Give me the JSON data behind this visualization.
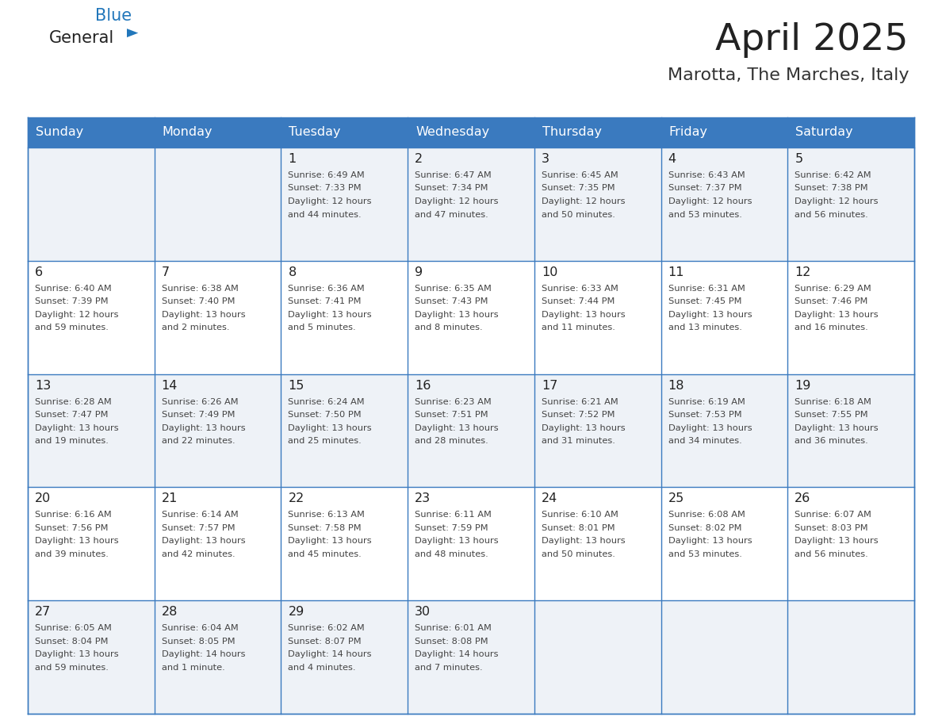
{
  "title": "April 2025",
  "subtitle": "Marotta, The Marches, Italy",
  "days_of_week": [
    "Sunday",
    "Monday",
    "Tuesday",
    "Wednesday",
    "Thursday",
    "Friday",
    "Saturday"
  ],
  "header_bg": "#3a7abf",
  "header_text": "#ffffff",
  "cell_bg_light": "#eef2f7",
  "cell_bg_white": "#ffffff",
  "border_color": "#3a7abf",
  "text_color": "#444444",
  "day_num_color": "#222222",
  "logo_black": "#222222",
  "logo_blue": "#2277bb",
  "calendar_data": [
    [
      {
        "day": null,
        "sunrise": null,
        "sunset": null,
        "daylight": null
      },
      {
        "day": null,
        "sunrise": null,
        "sunset": null,
        "daylight": null
      },
      {
        "day": 1,
        "sunrise": "6:49 AM",
        "sunset": "7:33 PM",
        "daylight": "12 hours and 44 minutes."
      },
      {
        "day": 2,
        "sunrise": "6:47 AM",
        "sunset": "7:34 PM",
        "daylight": "12 hours and 47 minutes."
      },
      {
        "day": 3,
        "sunrise": "6:45 AM",
        "sunset": "7:35 PM",
        "daylight": "12 hours and 50 minutes."
      },
      {
        "day": 4,
        "sunrise": "6:43 AM",
        "sunset": "7:37 PM",
        "daylight": "12 hours and 53 minutes."
      },
      {
        "day": 5,
        "sunrise": "6:42 AM",
        "sunset": "7:38 PM",
        "daylight": "12 hours and 56 minutes."
      }
    ],
    [
      {
        "day": 6,
        "sunrise": "6:40 AM",
        "sunset": "7:39 PM",
        "daylight": "12 hours and 59 minutes."
      },
      {
        "day": 7,
        "sunrise": "6:38 AM",
        "sunset": "7:40 PM",
        "daylight": "13 hours and 2 minutes."
      },
      {
        "day": 8,
        "sunrise": "6:36 AM",
        "sunset": "7:41 PM",
        "daylight": "13 hours and 5 minutes."
      },
      {
        "day": 9,
        "sunrise": "6:35 AM",
        "sunset": "7:43 PM",
        "daylight": "13 hours and 8 minutes."
      },
      {
        "day": 10,
        "sunrise": "6:33 AM",
        "sunset": "7:44 PM",
        "daylight": "13 hours and 11 minutes."
      },
      {
        "day": 11,
        "sunrise": "6:31 AM",
        "sunset": "7:45 PM",
        "daylight": "13 hours and 13 minutes."
      },
      {
        "day": 12,
        "sunrise": "6:29 AM",
        "sunset": "7:46 PM",
        "daylight": "13 hours and 16 minutes."
      }
    ],
    [
      {
        "day": 13,
        "sunrise": "6:28 AM",
        "sunset": "7:47 PM",
        "daylight": "13 hours and 19 minutes."
      },
      {
        "day": 14,
        "sunrise": "6:26 AM",
        "sunset": "7:49 PM",
        "daylight": "13 hours and 22 minutes."
      },
      {
        "day": 15,
        "sunrise": "6:24 AM",
        "sunset": "7:50 PM",
        "daylight": "13 hours and 25 minutes."
      },
      {
        "day": 16,
        "sunrise": "6:23 AM",
        "sunset": "7:51 PM",
        "daylight": "13 hours and 28 minutes."
      },
      {
        "day": 17,
        "sunrise": "6:21 AM",
        "sunset": "7:52 PM",
        "daylight": "13 hours and 31 minutes."
      },
      {
        "day": 18,
        "sunrise": "6:19 AM",
        "sunset": "7:53 PM",
        "daylight": "13 hours and 34 minutes."
      },
      {
        "day": 19,
        "sunrise": "6:18 AM",
        "sunset": "7:55 PM",
        "daylight": "13 hours and 36 minutes."
      }
    ],
    [
      {
        "day": 20,
        "sunrise": "6:16 AM",
        "sunset": "7:56 PM",
        "daylight": "13 hours and 39 minutes."
      },
      {
        "day": 21,
        "sunrise": "6:14 AM",
        "sunset": "7:57 PM",
        "daylight": "13 hours and 42 minutes."
      },
      {
        "day": 22,
        "sunrise": "6:13 AM",
        "sunset": "7:58 PM",
        "daylight": "13 hours and 45 minutes."
      },
      {
        "day": 23,
        "sunrise": "6:11 AM",
        "sunset": "7:59 PM",
        "daylight": "13 hours and 48 minutes."
      },
      {
        "day": 24,
        "sunrise": "6:10 AM",
        "sunset": "8:01 PM",
        "daylight": "13 hours and 50 minutes."
      },
      {
        "day": 25,
        "sunrise": "6:08 AM",
        "sunset": "8:02 PM",
        "daylight": "13 hours and 53 minutes."
      },
      {
        "day": 26,
        "sunrise": "6:07 AM",
        "sunset": "8:03 PM",
        "daylight": "13 hours and 56 minutes."
      }
    ],
    [
      {
        "day": 27,
        "sunrise": "6:05 AM",
        "sunset": "8:04 PM",
        "daylight": "13 hours and 59 minutes."
      },
      {
        "day": 28,
        "sunrise": "6:04 AM",
        "sunset": "8:05 PM",
        "daylight": "14 hours and 1 minute."
      },
      {
        "day": 29,
        "sunrise": "6:02 AM",
        "sunset": "8:07 PM",
        "daylight": "14 hours and 4 minutes."
      },
      {
        "day": 30,
        "sunrise": "6:01 AM",
        "sunset": "8:08 PM",
        "daylight": "14 hours and 7 minutes."
      },
      {
        "day": null,
        "sunrise": null,
        "sunset": null,
        "daylight": null
      },
      {
        "day": null,
        "sunrise": null,
        "sunset": null,
        "daylight": null
      },
      {
        "day": null,
        "sunrise": null,
        "sunset": null,
        "daylight": null
      }
    ]
  ]
}
